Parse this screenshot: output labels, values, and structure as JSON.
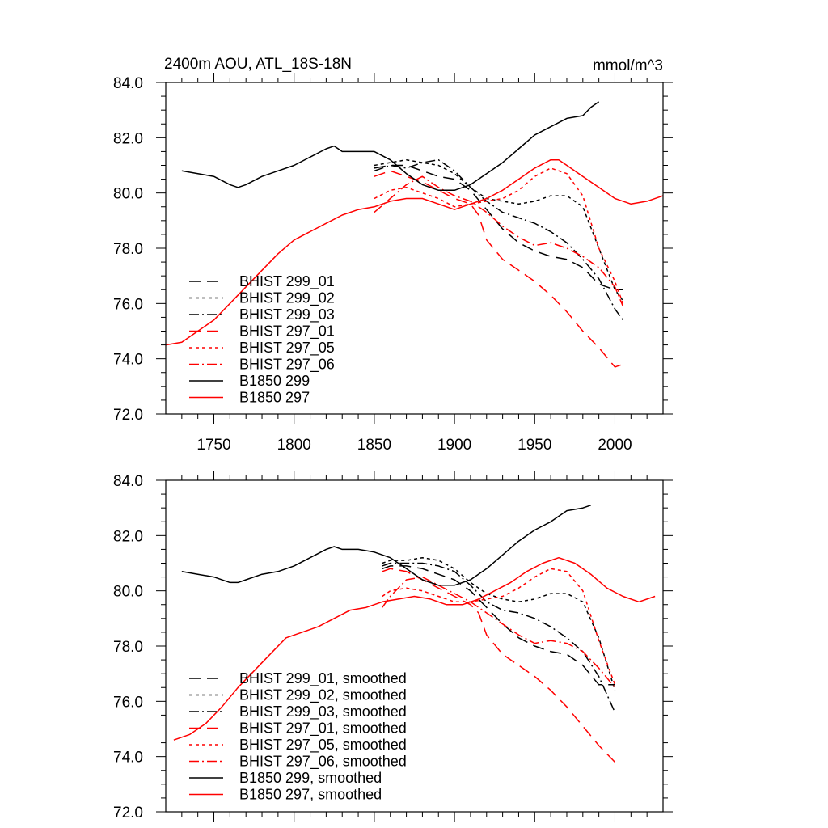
{
  "chart_data": [
    {
      "type": "line",
      "title": "2400m AOU, ATL_18S-18N",
      "units": "mmol/m^3",
      "xlim": [
        1720,
        2030
      ],
      "ylim": [
        72.0,
        84.0
      ],
      "x_ticks": [
        1750,
        1800,
        1850,
        1900,
        1950,
        2000
      ],
      "y_ticks": [
        "72.0",
        "74.0",
        "76.0",
        "78.0",
        "80.0",
        "82.0",
        "84.0"
      ],
      "legend_placement": "lower-left",
      "series": [
        {
          "name": "BHIST 299_01",
          "color": "#000000",
          "dash": "long-dash",
          "x": [
            1850,
            1860,
            1870,
            1880,
            1890,
            1900,
            1910,
            1920,
            1930,
            1940,
            1950,
            1960,
            1970,
            1980,
            1990,
            2000,
            2005
          ],
          "y": [
            80.9,
            81.0,
            81.0,
            80.8,
            80.6,
            80.5,
            80.1,
            79.4,
            78.7,
            78.2,
            77.9,
            77.7,
            77.6,
            77.3,
            76.7,
            76.5,
            76.5
          ]
        },
        {
          "name": "BHIST 299_02",
          "color": "#000000",
          "dash": "short-dash",
          "x": [
            1850,
            1860,
            1870,
            1880,
            1890,
            1900,
            1910,
            1920,
            1930,
            1940,
            1950,
            1960,
            1970,
            1980,
            1990,
            2000,
            2005
          ],
          "y": [
            81.0,
            81.1,
            81.2,
            81.1,
            81.0,
            80.7,
            80.2,
            79.8,
            79.7,
            79.6,
            79.7,
            79.9,
            79.9,
            79.5,
            78.0,
            76.5,
            76.1
          ]
        },
        {
          "name": "BHIST 299_03",
          "color": "#000000",
          "dash": "dash-dot",
          "x": [
            1850,
            1860,
            1870,
            1880,
            1890,
            1900,
            1910,
            1920,
            1930,
            1940,
            1950,
            1960,
            1970,
            1980,
            1990,
            2000,
            2005
          ],
          "y": [
            80.8,
            81.0,
            80.9,
            81.1,
            81.2,
            80.8,
            80.2,
            79.7,
            79.3,
            79.1,
            78.9,
            78.6,
            78.2,
            77.6,
            76.9,
            75.8,
            75.4
          ]
        },
        {
          "name": "BHIST 297_01",
          "color": "#ff0000",
          "dash": "long-dash",
          "x": [
            1850,
            1860,
            1870,
            1880,
            1890,
            1900,
            1910,
            1915,
            1920,
            1930,
            1940,
            1950,
            1960,
            1970,
            1980,
            1990,
            2000,
            2005
          ],
          "y": [
            80.6,
            80.8,
            80.6,
            80.4,
            80.1,
            79.8,
            79.6,
            79.2,
            78.3,
            77.6,
            77.2,
            76.8,
            76.3,
            75.7,
            75.0,
            74.4,
            73.7,
            73.8
          ]
        },
        {
          "name": "BHIST 297_05",
          "color": "#ff0000",
          "dash": "short-dash",
          "x": [
            1850,
            1860,
            1870,
            1880,
            1890,
            1900,
            1910,
            1920,
            1930,
            1940,
            1950,
            1960,
            1970,
            1980,
            1990,
            2000,
            2005
          ],
          "y": [
            79.8,
            80.1,
            80.2,
            80.0,
            79.8,
            79.5,
            79.6,
            79.7,
            79.8,
            80.1,
            80.6,
            80.9,
            80.7,
            79.9,
            78.0,
            76.8,
            76.0
          ]
        },
        {
          "name": "BHIST 297_06",
          "color": "#ff0000",
          "dash": "dash-dot",
          "x": [
            1850,
            1860,
            1870,
            1880,
            1890,
            1900,
            1910,
            1920,
            1930,
            1940,
            1950,
            1960,
            1970,
            1980,
            1990,
            2000,
            2005
          ],
          "y": [
            79.3,
            79.8,
            80.3,
            80.6,
            80.2,
            79.9,
            79.7,
            79.3,
            78.8,
            78.4,
            78.1,
            78.2,
            78.0,
            77.7,
            77.3,
            76.6,
            75.9
          ]
        },
        {
          "name": "B1850 299",
          "color": "#000000",
          "dash": "solid",
          "x": [
            1730,
            1740,
            1750,
            1760,
            1765,
            1770,
            1780,
            1790,
            1800,
            1810,
            1820,
            1825,
            1830,
            1840,
            1850,
            1860,
            1870,
            1880,
            1890,
            1900,
            1910,
            1920,
            1930,
            1940,
            1950,
            1960,
            1970,
            1980,
            1985,
            1990
          ],
          "y": [
            80.8,
            80.7,
            80.6,
            80.3,
            80.2,
            80.3,
            80.6,
            80.8,
            81.0,
            81.3,
            81.6,
            81.7,
            81.5,
            81.5,
            81.5,
            81.2,
            80.7,
            80.3,
            80.1,
            80.1,
            80.3,
            80.7,
            81.1,
            81.6,
            82.1,
            82.4,
            82.7,
            82.8,
            83.1,
            83.3
          ]
        },
        {
          "name": "B1850 297",
          "color": "#ff0000",
          "dash": "solid",
          "x": [
            1720,
            1730,
            1740,
            1750,
            1760,
            1770,
            1780,
            1790,
            1800,
            1810,
            1820,
            1830,
            1840,
            1850,
            1860,
            1870,
            1880,
            1890,
            1900,
            1910,
            1920,
            1930,
            1940,
            1950,
            1960,
            1965,
            1970,
            1980,
            1990,
            2000,
            2010,
            2020,
            2030
          ],
          "y": [
            74.5,
            74.6,
            75.0,
            75.4,
            76.0,
            76.6,
            77.2,
            77.8,
            78.3,
            78.6,
            78.9,
            79.2,
            79.4,
            79.5,
            79.7,
            79.8,
            79.8,
            79.6,
            79.4,
            79.6,
            79.8,
            80.1,
            80.5,
            80.9,
            81.2,
            81.2,
            81.0,
            80.6,
            80.2,
            79.8,
            79.6,
            79.7,
            79.9
          ]
        }
      ]
    },
    {
      "type": "line",
      "xlim": [
        1720,
        2030
      ],
      "ylim": [
        72.0,
        84.0
      ],
      "y_ticks": [
        "72.0",
        "74.0",
        "76.0",
        "78.0",
        "80.0",
        "82.0",
        "84.0"
      ],
      "legend_placement": "lower-left",
      "series": [
        {
          "name": "BHIST 299_01, smoothed",
          "color": "#000000",
          "dash": "long-dash",
          "x": [
            1855,
            1860,
            1870,
            1880,
            1890,
            1900,
            1910,
            1920,
            1930,
            1940,
            1950,
            1960,
            1970,
            1980,
            1990,
            2000
          ],
          "y": [
            80.8,
            80.9,
            80.9,
            80.8,
            80.6,
            80.4,
            80.0,
            79.4,
            78.8,
            78.3,
            78.0,
            77.8,
            77.7,
            77.3,
            76.6,
            76.6
          ]
        },
        {
          "name": "BHIST 299_02, smoothed",
          "color": "#000000",
          "dash": "short-dash",
          "x": [
            1855,
            1860,
            1870,
            1880,
            1890,
            1900,
            1910,
            1920,
            1930,
            1940,
            1950,
            1960,
            1970,
            1980,
            1990,
            2000
          ],
          "y": [
            81.0,
            81.1,
            81.1,
            81.2,
            81.1,
            80.8,
            80.3,
            79.9,
            79.7,
            79.6,
            79.7,
            79.9,
            79.9,
            79.6,
            78.3,
            76.4
          ]
        },
        {
          "name": "BHIST 299_03, smoothed",
          "color": "#000000",
          "dash": "dash-dot",
          "x": [
            1855,
            1860,
            1870,
            1880,
            1890,
            1900,
            1910,
            1920,
            1930,
            1940,
            1950,
            1960,
            1970,
            1980,
            1990,
            2000
          ],
          "y": [
            80.9,
            81.0,
            81.0,
            81.0,
            80.9,
            80.7,
            80.2,
            79.6,
            79.3,
            79.2,
            79.0,
            78.7,
            78.3,
            77.8,
            76.9,
            75.6
          ]
        },
        {
          "name": "BHIST 297_01, smoothed",
          "color": "#ff0000",
          "dash": "long-dash",
          "x": [
            1855,
            1860,
            1870,
            1880,
            1890,
            1900,
            1910,
            1915,
            1920,
            1930,
            1940,
            1950,
            1960,
            1970,
            1980,
            1990,
            2000
          ],
          "y": [
            80.7,
            80.8,
            80.7,
            80.4,
            80.1,
            79.8,
            79.5,
            79.2,
            78.4,
            77.7,
            77.3,
            76.9,
            76.4,
            75.8,
            75.1,
            74.4,
            73.8
          ]
        },
        {
          "name": "BHIST 297_05, smoothed",
          "color": "#ff0000",
          "dash": "short-dash",
          "x": [
            1855,
            1860,
            1870,
            1880,
            1890,
            1900,
            1910,
            1920,
            1930,
            1940,
            1950,
            1960,
            1970,
            1980,
            1990,
            2000
          ],
          "y": [
            79.8,
            80.0,
            80.1,
            80.0,
            79.8,
            79.6,
            79.6,
            79.7,
            79.8,
            80.1,
            80.5,
            80.8,
            80.7,
            80.0,
            78.2,
            76.6
          ]
        },
        {
          "name": "BHIST 297_06, smoothed",
          "color": "#ff0000",
          "dash": "dash-dot",
          "x": [
            1855,
            1860,
            1870,
            1880,
            1890,
            1900,
            1910,
            1920,
            1930,
            1940,
            1950,
            1960,
            1970,
            1980,
            1990,
            2000
          ],
          "y": [
            79.4,
            79.8,
            80.4,
            80.5,
            80.2,
            79.9,
            79.6,
            79.2,
            78.8,
            78.4,
            78.1,
            78.2,
            78.1,
            77.8,
            77.2,
            76.5
          ]
        },
        {
          "name": "B1850 299, smoothed",
          "color": "#000000",
          "dash": "solid",
          "x": [
            1730,
            1740,
            1750,
            1760,
            1765,
            1770,
            1780,
            1790,
            1800,
            1810,
            1820,
            1825,
            1830,
            1840,
            1850,
            1860,
            1870,
            1880,
            1890,
            1900,
            1910,
            1920,
            1930,
            1940,
            1950,
            1960,
            1970,
            1980,
            1985
          ],
          "y": [
            80.7,
            80.6,
            80.5,
            80.3,
            80.3,
            80.4,
            80.6,
            80.7,
            80.9,
            81.2,
            81.5,
            81.6,
            81.5,
            81.5,
            81.4,
            81.2,
            80.8,
            80.4,
            80.2,
            80.2,
            80.4,
            80.8,
            81.3,
            81.8,
            82.2,
            82.5,
            82.9,
            83.0,
            83.1
          ]
        },
        {
          "name": "B1850 297, smoothed",
          "color": "#ff0000",
          "dash": "solid",
          "x": [
            1725,
            1735,
            1745,
            1755,
            1765,
            1775,
            1785,
            1795,
            1805,
            1815,
            1825,
            1835,
            1845,
            1855,
            1865,
            1875,
            1885,
            1895,
            1905,
            1915,
            1925,
            1935,
            1945,
            1955,
            1965,
            1975,
            1985,
            1995,
            2005,
            2015,
            2025
          ],
          "y": [
            74.6,
            74.8,
            75.2,
            75.8,
            76.5,
            77.1,
            77.7,
            78.3,
            78.5,
            78.7,
            79.0,
            79.3,
            79.4,
            79.6,
            79.7,
            79.8,
            79.7,
            79.5,
            79.5,
            79.7,
            80.0,
            80.3,
            80.7,
            81.0,
            81.2,
            81.0,
            80.6,
            80.1,
            79.8,
            79.6,
            79.8
          ]
        }
      ]
    }
  ]
}
